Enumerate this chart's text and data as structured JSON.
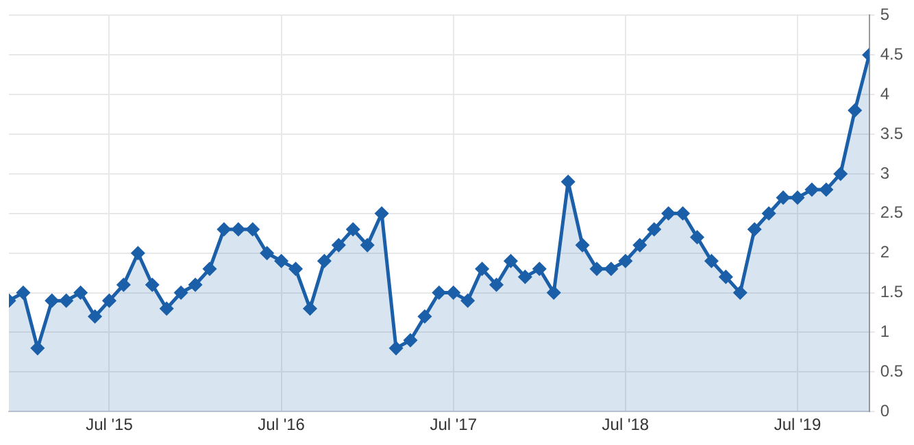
{
  "chart_data": {
    "type": "area",
    "x": [
      "2014-12",
      "2015-01",
      "2015-02",
      "2015-03",
      "2015-04",
      "2015-05",
      "2015-06",
      "2015-07",
      "2015-08",
      "2015-09",
      "2015-10",
      "2015-11",
      "2015-12",
      "2016-01",
      "2016-02",
      "2016-03",
      "2016-04",
      "2016-05",
      "2016-06",
      "2016-07",
      "2016-08",
      "2016-09",
      "2016-10",
      "2016-11",
      "2016-12",
      "2017-01",
      "2017-02",
      "2017-03",
      "2017-04",
      "2017-05",
      "2017-06",
      "2017-07",
      "2017-08",
      "2017-09",
      "2017-10",
      "2017-11",
      "2017-12",
      "2018-01",
      "2018-02",
      "2018-03",
      "2018-04",
      "2018-05",
      "2018-06",
      "2018-07",
      "2018-08",
      "2018-09",
      "2018-10",
      "2018-11",
      "2018-12",
      "2019-01",
      "2019-02",
      "2019-03",
      "2019-04",
      "2019-05",
      "2019-06",
      "2019-07",
      "2019-08",
      "2019-09",
      "2019-10",
      "2019-11",
      "2019-12"
    ],
    "series": [
      {
        "color": "#1a5fa8",
        "values": [
          1.4,
          1.5,
          0.8,
          1.4,
          1.4,
          1.5,
          1.2,
          1.4,
          1.6,
          2.0,
          1.6,
          1.3,
          1.5,
          1.6,
          1.8,
          2.3,
          2.3,
          2.3,
          2.0,
          1.9,
          1.8,
          1.3,
          1.9,
          2.1,
          2.3,
          2.1,
          2.5,
          0.8,
          0.9,
          1.2,
          1.5,
          1.5,
          1.4,
          1.8,
          1.6,
          1.9,
          1.7,
          1.8,
          1.5,
          2.9,
          2.1,
          1.8,
          1.8,
          1.9,
          2.1,
          2.3,
          2.5,
          2.5,
          2.2,
          1.9,
          1.7,
          1.5,
          2.3,
          2.5,
          2.7,
          2.7,
          2.8,
          2.8,
          3.0,
          3.8,
          4.5
        ]
      }
    ],
    "xlim": [
      "2014-12",
      "2019-12"
    ],
    "xticks": [
      {
        "value": "2015-07",
        "label": "Jul '15"
      },
      {
        "value": "2016-07",
        "label": "Jul '16"
      },
      {
        "value": "2017-07",
        "label": "Jul '17"
      },
      {
        "value": "2018-07",
        "label": "Jul '18"
      },
      {
        "value": "2019-07",
        "label": "Jul '19"
      }
    ],
    "ylim": [
      0,
      5
    ],
    "yticks": [
      0,
      0.5,
      1,
      1.5,
      2,
      2.5,
      3,
      3.5,
      4,
      4.5,
      5
    ],
    "grid": true,
    "legend": false,
    "marker": "diamond",
    "line_style": "solid"
  }
}
